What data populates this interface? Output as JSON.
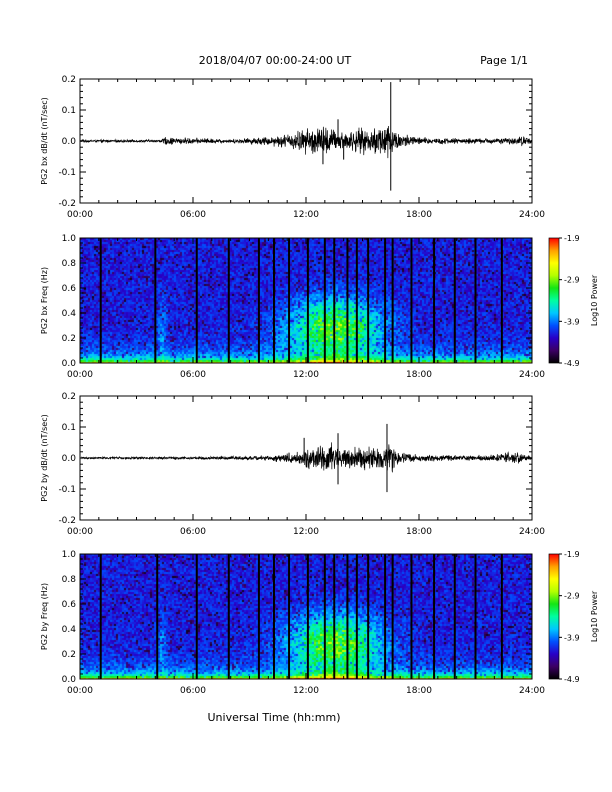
{
  "header": {
    "title": "2018/04/07  00:00-24:00 UT",
    "page": "Page 1/1"
  },
  "footer": {
    "xlabel": "Universal Time (hh:mm)"
  },
  "colors": {
    "axis": "#000000",
    "colormap": [
      "#000000",
      "#3c0064",
      "#2800c8",
      "#0050ff",
      "#00c8ff",
      "#00ffa0",
      "#14e614",
      "#b4ff00",
      "#ffff00",
      "#ffa000",
      "#ff0000"
    ]
  },
  "chart_data": [
    {
      "type": "line",
      "ylabel": "PG2 bx dB/dt (nT/sec)",
      "xlim": [
        0,
        24
      ],
      "ylim": [
        -0.2,
        0.2
      ],
      "xticks": [
        "00:00",
        "06:00",
        "12:00",
        "18:00",
        "24:00"
      ],
      "yticks": [
        "-0.2",
        "-0.1",
        "0.0",
        "0.1",
        "0.2"
      ],
      "envelope": {
        "x": [
          0,
          4.3,
          4.5,
          8,
          9,
          10,
          11,
          12,
          13,
          13.3,
          14,
          15,
          15.5,
          16.2,
          16.5,
          17,
          18,
          19,
          21,
          23,
          23.5,
          24
        ],
        "amplitude": [
          0.004,
          0.004,
          0.012,
          0.006,
          0.01,
          0.014,
          0.022,
          0.04,
          0.05,
          0.04,
          0.03,
          0.04,
          0.035,
          0.07,
          0.05,
          0.025,
          0.012,
          0.01,
          0.008,
          0.01,
          0.018,
          0.006
        ]
      },
      "spikes": [
        {
          "x": 16.5,
          "y": 0.19
        },
        {
          "x": 16.5,
          "y": -0.16
        },
        {
          "x": 12.9,
          "y": -0.075
        },
        {
          "x": 13.7,
          "y": 0.07
        },
        {
          "x": 14.0,
          "y": -0.06
        }
      ]
    },
    {
      "type": "heatmap",
      "ylabel": "PG2 bx Freq (Hz)",
      "xlim": [
        0,
        24
      ],
      "ylim": [
        0.0,
        1.0
      ],
      "xticks": [
        "00:00",
        "06:00",
        "12:00",
        "18:00",
        "24:00"
      ],
      "yticks": [
        "0.0",
        "0.2",
        "0.4",
        "0.6",
        "0.8",
        "1.0"
      ],
      "colorbar": {
        "label": "Log10 Power",
        "min": -4.9,
        "max": -1.9,
        "ticks": [
          "-1.9",
          "-2.9",
          "-3.9",
          "-4.9"
        ]
      },
      "data_gaps_hours": [
        1.1,
        4.0,
        6.2,
        7.9,
        9.5,
        10.3,
        11.1,
        12.1,
        13.0,
        13.5,
        14.2,
        14.7,
        15.3,
        16.2,
        16.6,
        17.6,
        18.8,
        19.9,
        21.0,
        22.4
      ]
    },
    {
      "type": "line",
      "ylabel": "PG2 by dB/dt (nT/sec)",
      "xlim": [
        0,
        24
      ],
      "ylim": [
        -0.2,
        0.2
      ],
      "xticks": [
        "00:00",
        "06:00",
        "12:00",
        "18:00",
        "24:00"
      ],
      "yticks": [
        "-0.2",
        "-0.1",
        "0.0",
        "0.1",
        "0.2"
      ],
      "envelope": {
        "x": [
          0,
          4,
          8,
          10,
          11,
          12,
          13,
          13.3,
          14,
          15,
          16,
          16.5,
          17,
          18,
          20,
          22,
          23.2,
          23.7,
          24
        ],
        "amplitude": [
          0.003,
          0.004,
          0.005,
          0.008,
          0.015,
          0.03,
          0.04,
          0.05,
          0.03,
          0.035,
          0.035,
          0.05,
          0.02,
          0.01,
          0.008,
          0.01,
          0.02,
          0.01,
          0.005
        ]
      },
      "spikes": [
        {
          "x": 13.7,
          "y": 0.08
        },
        {
          "x": 13.7,
          "y": -0.085
        },
        {
          "x": 16.3,
          "y": 0.11
        },
        {
          "x": 16.3,
          "y": -0.11
        },
        {
          "x": 11.9,
          "y": 0.065
        }
      ]
    },
    {
      "type": "heatmap",
      "ylabel": "PG2 by Freq (Hz)",
      "xlim": [
        0,
        24
      ],
      "ylim": [
        0.0,
        1.0
      ],
      "xticks": [
        "00:00",
        "06:00",
        "12:00",
        "18:00",
        "24:00"
      ],
      "yticks": [
        "0.0",
        "0.2",
        "0.4",
        "0.6",
        "0.8",
        "1.0"
      ],
      "colorbar": {
        "label": "Log10 Power",
        "min": -4.9,
        "max": -1.9,
        "ticks": [
          "-1.9",
          "-2.9",
          "-3.9",
          "-4.9"
        ]
      },
      "data_gaps_hours": [
        1.1,
        4.1,
        6.2,
        7.9,
        9.5,
        10.3,
        11.1,
        12.1,
        13.0,
        13.5,
        14.2,
        14.7,
        15.3,
        16.2,
        16.6,
        17.6,
        18.8,
        19.9,
        21.0,
        22.4
      ]
    }
  ]
}
